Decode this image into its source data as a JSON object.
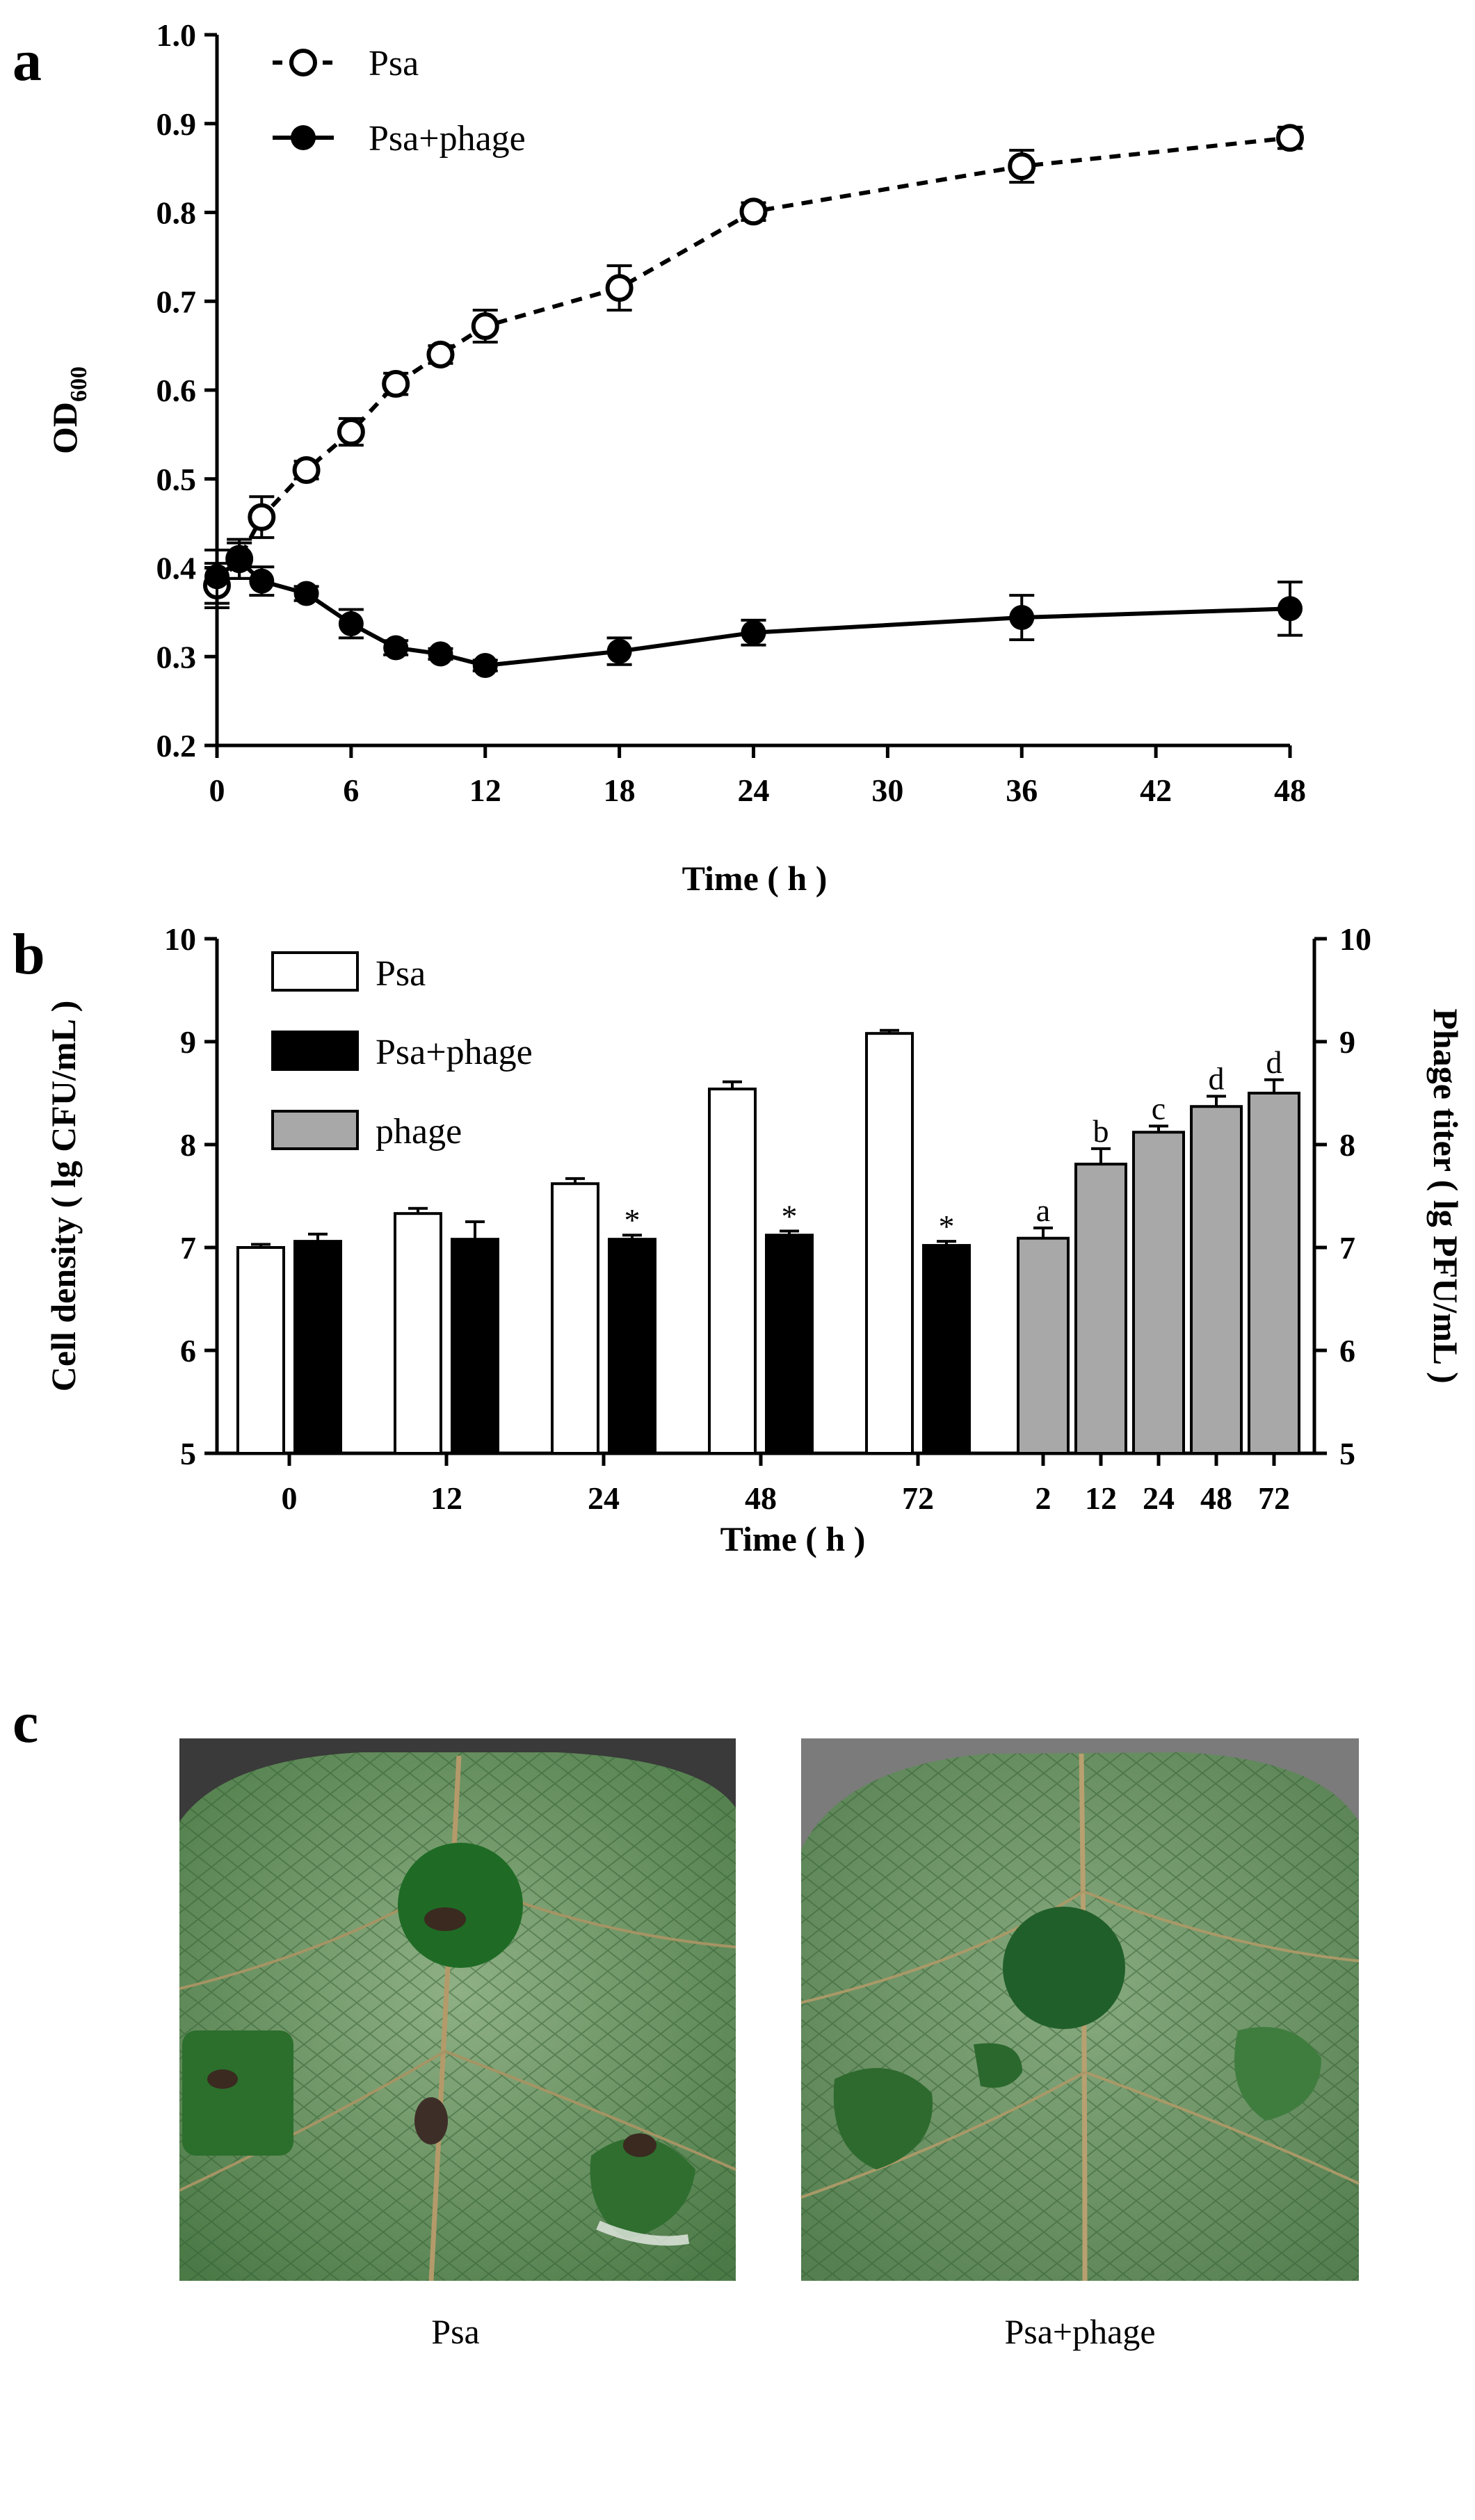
{
  "panels": {
    "a": "a",
    "b": "b",
    "c": "c"
  },
  "colors": {
    "ink": "#000000",
    "psa_bar": "#ffffff",
    "psa_phage_bar": "#000000",
    "phage_bar": "#a8a8a8",
    "leaf_dark": "#3f6f3a",
    "leaf_light": "#86a77a",
    "lesion": "#1f5c25"
  },
  "chart_data": [
    {
      "id": "a",
      "type": "line",
      "xlabel": "Time ( h )",
      "ylabel_main": "OD",
      "ylabel_sub": "600",
      "xlim": [
        0,
        48
      ],
      "ylim": [
        0.2,
        1.0
      ],
      "xticks": [
        0,
        6,
        12,
        18,
        24,
        30,
        36,
        42,
        48
      ],
      "yticks": [
        "0.2",
        "0.3",
        "0.4",
        "0.5",
        "0.6",
        "0.7",
        "0.8",
        "0.9",
        "1.0"
      ],
      "series": [
        {
          "name": "Psa",
          "style": "dashed-open-circle",
          "x": [
            0,
            1,
            2,
            4,
            6,
            8,
            10,
            12,
            18,
            24,
            36,
            48
          ],
          "y": [
            0.38,
            0.41,
            0.457,
            0.51,
            0.553,
            0.607,
            0.64,
            0.672,
            0.715,
            0.801,
            0.852,
            0.884
          ],
          "err": [
            0.025,
            0.022,
            0.023,
            0.01,
            0.015,
            0.012,
            0.01,
            0.018,
            0.025,
            0.01,
            0.018,
            0.012
          ]
        },
        {
          "name": "Psa+phage",
          "style": "solid-filled-circle",
          "x": [
            0,
            1,
            2,
            4,
            6,
            8,
            10,
            12,
            18,
            24,
            36,
            48
          ],
          "y": [
            0.39,
            0.408,
            0.385,
            0.371,
            0.337,
            0.31,
            0.303,
            0.29,
            0.306,
            0.327,
            0.344,
            0.354
          ],
          "err": [
            0.03,
            0.02,
            0.016,
            0.008,
            0.016,
            0.008,
            0.006,
            0.006,
            0.015,
            0.014,
            0.025,
            0.03
          ]
        }
      ]
    },
    {
      "id": "b",
      "type": "bar",
      "xlabel": "Time ( h )",
      "ylabel_left": "Cell density ( lg CFU/mL )",
      "ylabel_right": "Phage titer ( lg PFU/mL )",
      "ylim": [
        5,
        10
      ],
      "yticks": [
        "5",
        "6",
        "7",
        "8",
        "9",
        "10"
      ],
      "categories_left": [
        "0",
        "12",
        "24",
        "48",
        "72"
      ],
      "series_left": [
        {
          "name": "Psa",
          "values": [
            7.0,
            7.33,
            7.62,
            8.54,
            9.08
          ],
          "err": [
            0.03,
            0.05,
            0.05,
            0.07,
            0.03
          ]
        },
        {
          "name": "Psa+phage",
          "values": [
            7.06,
            7.08,
            7.08,
            7.12,
            7.02
          ],
          "err": [
            0.07,
            0.17,
            0.04,
            0.04,
            0.04
          ],
          "labels": [
            "",
            "",
            "*",
            "*",
            "*"
          ]
        }
      ],
      "categories_right": [
        "2",
        "12",
        "24",
        "48",
        "72"
      ],
      "series_right": {
        "name": "phage",
        "values": [
          7.09,
          7.81,
          8.12,
          8.37,
          8.5
        ],
        "err": [
          0.1,
          0.15,
          0.06,
          0.1,
          0.13
        ],
        "labels": [
          "a",
          "b",
          "c",
          "d",
          "d"
        ]
      }
    }
  ],
  "photos": {
    "left_caption": "Psa",
    "right_caption": "Psa+phage"
  }
}
